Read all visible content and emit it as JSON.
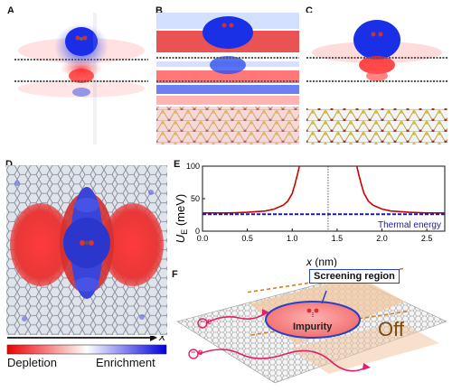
{
  "panels": {
    "a": {
      "label": "A"
    },
    "b": {
      "label": "B"
    },
    "c": {
      "label": "C"
    },
    "d": {
      "label": "D"
    },
    "e": {
      "label": "E"
    },
    "f": {
      "label": "F"
    }
  },
  "colorbar": {
    "axis_label": "x",
    "left_label": "Depletion",
    "right_label": "Enrichment"
  },
  "schematic": {
    "screening_label": "Screening region",
    "impurity_label": "Impurity",
    "off_label": "Off",
    "electron_label": "e",
    "electron_charge": "−"
  },
  "chart_data": {
    "type": "line",
    "ylabel": "U_E (meV)",
    "ylabel_main": "U",
    "ylabel_sub": "E",
    "ylabel_unit": " (meV)",
    "xlabel": "x (nm)",
    "xlabel_var": "x",
    "xlabel_unit": " (nm)",
    "xlim": [
      0,
      2.7
    ],
    "ylim": [
      0,
      100
    ],
    "xticks": [
      "0.0",
      "0.5",
      "1.0",
      "1.5",
      "2.0",
      "2.5"
    ],
    "yticks": [
      "0",
      "50",
      "100"
    ],
    "vline_x": 1.4,
    "annotation": "Thermal energy",
    "series": [
      {
        "name": "",
        "color": "#cc0000",
        "x": [
          0.0,
          0.3,
          0.5,
          0.7,
          0.8,
          0.9,
          0.95,
          1.0,
          1.03,
          1.06,
          1.08
        ],
        "y": [
          28,
          28,
          29,
          31,
          34,
          40,
          46,
          58,
          72,
          88,
          100
        ]
      },
      {
        "name": "",
        "color": "#cc0000",
        "x": [
          1.72,
          1.74,
          1.77,
          1.8,
          1.85,
          1.9,
          2.0,
          2.1,
          2.3,
          2.5,
          2.7
        ],
        "y": [
          100,
          88,
          72,
          58,
          46,
          40,
          34,
          31,
          29,
          28,
          28
        ]
      },
      {
        "name": "Thermal energy",
        "color": "#1a1aaa",
        "dashed": true,
        "x": [
          0.0,
          2.7
        ],
        "y": [
          26,
          26
        ]
      }
    ]
  }
}
